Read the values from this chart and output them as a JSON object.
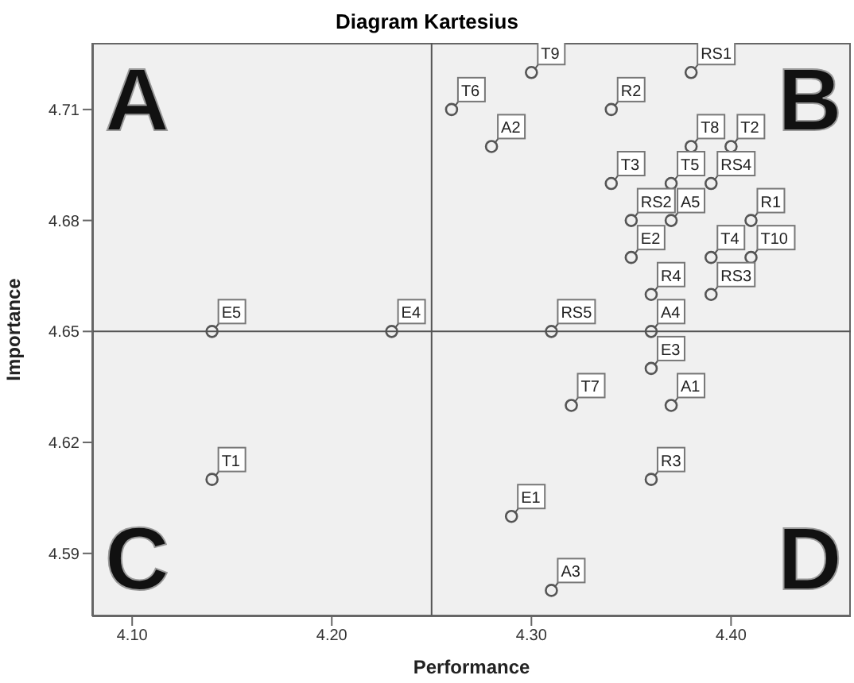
{
  "chart_data": {
    "type": "scatter",
    "title": "Diagram Kartesius",
    "xlabel": "Performance",
    "ylabel": "Importance",
    "annotations": [
      "A",
      "B",
      "C",
      "D"
    ],
    "x": [
      4.3,
      4.26,
      4.28,
      4.34,
      4.38,
      4.38,
      4.4,
      4.34,
      4.37,
      4.39,
      4.35,
      4.37,
      4.41,
      4.35,
      4.39,
      4.41,
      4.36,
      4.39,
      4.31,
      4.36,
      4.36,
      4.32,
      4.37,
      4.36,
      4.29,
      4.31,
      4.14,
      4.23,
      4.14
    ],
    "values": [
      4.72,
      4.71,
      4.7,
      4.71,
      4.72,
      4.7,
      4.7,
      4.69,
      4.69,
      4.69,
      4.68,
      4.68,
      4.68,
      4.67,
      4.67,
      4.67,
      4.66,
      4.66,
      4.65,
      4.65,
      4.64,
      4.63,
      4.63,
      4.61,
      4.6,
      4.58,
      4.65,
      4.65,
      4.61
    ],
    "value_labels": [
      "T9",
      "T6",
      "A2",
      "R2",
      "RS1",
      "T8",
      "T2",
      "T3",
      "T5",
      "RS4",
      "RS2",
      "A5",
      "R1",
      "E2",
      "T4",
      "T10",
      "R4",
      "RS3",
      "RS5",
      "A4",
      "E3",
      "T7",
      "A1",
      "R3",
      "E1",
      "A3",
      "E5",
      "E4",
      "T1"
    ],
    "color": "#555555",
    "marker": "circle",
    "grid": false,
    "legend": false,
    "xlim": [
      4.08,
      4.46
    ],
    "xticks": [
      {
        "value": 4.1,
        "label": "4.10"
      },
      {
        "value": 4.2,
        "label": "4.20"
      },
      {
        "value": 4.3,
        "label": "4.30"
      },
      {
        "value": 4.4,
        "label": "4.40"
      }
    ],
    "ylim": [
      4.573,
      4.728
    ],
    "yticks": [
      4.59,
      4.62,
      4.65,
      4.68,
      4.71
    ],
    "ref_lines": [
      {
        "axis": "x",
        "value": 4.25,
        "label": null,
        "color": "#555555"
      },
      {
        "axis": "y",
        "value": 4.65,
        "label": null,
        "color": "#555555"
      }
    ]
  }
}
